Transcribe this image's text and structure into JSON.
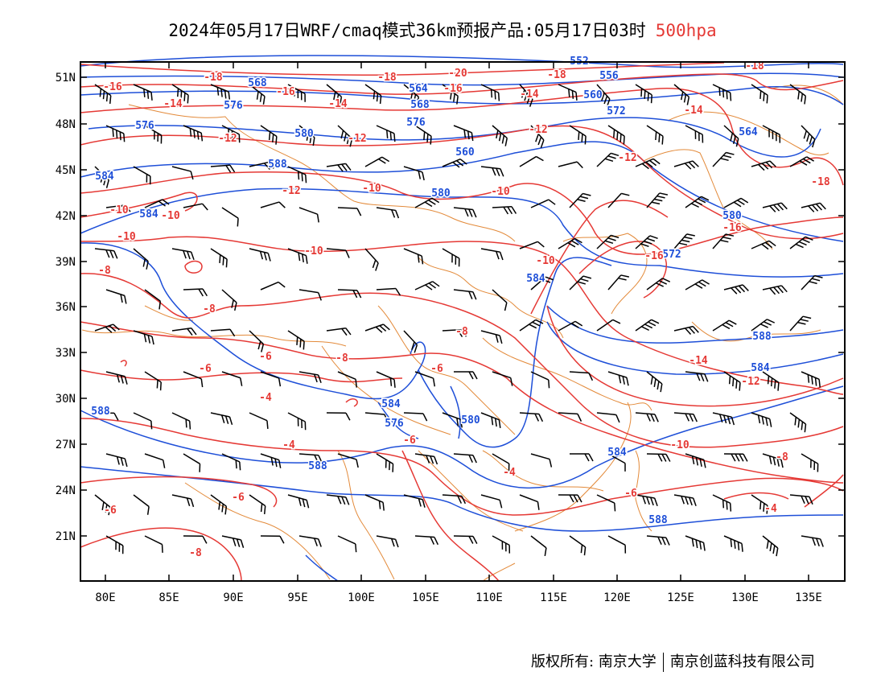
{
  "title": {
    "main": "2024年05月17日WRF/cmaq模式36km预报产品:05月17日03时",
    "level": "500hpa"
  },
  "colors": {
    "temperature": "#e53935",
    "geopotential": "#1e4fd8",
    "border": "#e38a3a",
    "wind": "#000000"
  },
  "axes": {
    "lat_labels": [
      "51N",
      "48N",
      "45N",
      "42N",
      "39N",
      "36N",
      "33N",
      "30N",
      "27N",
      "24N",
      "21N"
    ],
    "lon_labels": [
      "80E",
      "85E",
      "90E",
      "95E",
      "100E",
      "105E",
      "110E",
      "115E",
      "120E",
      "125E",
      "130E",
      "135E"
    ]
  },
  "geopotential_labels": [
    "552",
    "556",
    "568",
    "564",
    "560",
    "576",
    "568",
    "572",
    "576",
    "564",
    "580",
    "576",
    "560",
    "580",
    "584",
    "588",
    "580",
    "572",
    "584",
    "584",
    "584",
    "576",
    "580",
    "588",
    "584",
    "584",
    "588",
    "588",
    "588"
  ],
  "temperature_labels": [
    "-20",
    "-18",
    "-18",
    "-16",
    "-16",
    "-16",
    "-18",
    "-18",
    "-14",
    "-14",
    "-14",
    "-14",
    "-12",
    "-12",
    "-12",
    "-12",
    "-18",
    "-12",
    "-10",
    "-10",
    "-10",
    "-10",
    "-10",
    "-16",
    "-16",
    "-10",
    "-8",
    "-10",
    "-8",
    "-8",
    "-6",
    "-8",
    "-6",
    "-6",
    "-14",
    "-12",
    "-4",
    "-4",
    "-6",
    "-4",
    "-10",
    "-8",
    "-6",
    "-6",
    "-6",
    "-4",
    "-8"
  ],
  "footer": {
    "left": "版权所有: 南京大学",
    "right": "南京创蓝科技有限公司"
  }
}
